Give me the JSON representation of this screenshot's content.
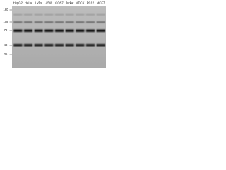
{
  "lanes": [
    "HepG2",
    "HeLa",
    "LvTx",
    "A549",
    "COS7",
    "Jurkat",
    "MDCK",
    "PC12",
    "MCF7"
  ],
  "markers": [
    "160",
    "108",
    "79",
    "48",
    "35"
  ]
}
